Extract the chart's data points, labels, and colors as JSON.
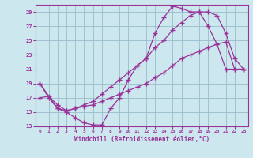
{
  "xlabel": "Windchill (Refroidissement éolien,°C)",
  "xlim": [
    -0.5,
    23.5
  ],
  "ylim": [
    13,
    30
  ],
  "xticks": [
    0,
    1,
    2,
    3,
    4,
    5,
    6,
    7,
    8,
    9,
    10,
    11,
    12,
    13,
    14,
    15,
    16,
    17,
    18,
    19,
    20,
    21,
    22,
    23
  ],
  "yticks": [
    13,
    15,
    17,
    19,
    21,
    23,
    25,
    27,
    29
  ],
  "bg_color": "#cce8ee",
  "line_color": "#993399",
  "grid_color": "#99bbcc",
  "line1_x": [
    0,
    1,
    2,
    3,
    4,
    5,
    6,
    7,
    8,
    9,
    10,
    11,
    12,
    13,
    14,
    15,
    16,
    17,
    18,
    19,
    20,
    21,
    22,
    23
  ],
  "line1_y": [
    19,
    17,
    15.5,
    15,
    14.2,
    13.5,
    13.2,
    13.2,
    15.5,
    17,
    19.5,
    21.5,
    22.5,
    26,
    28.2,
    29.8,
    29.5,
    29,
    29,
    27,
    24.5,
    21,
    21,
    21
  ],
  "line2_x": [
    0,
    2,
    3,
    4,
    5,
    6,
    7,
    8,
    9,
    10,
    11,
    12,
    13,
    14,
    15,
    16,
    17,
    18,
    19,
    20,
    21,
    22,
    23
  ],
  "line2_y": [
    19,
    15.5,
    15.2,
    15.5,
    16,
    16.5,
    17.5,
    18.5,
    19.5,
    20.5,
    21.5,
    22.5,
    24,
    25,
    26.5,
    27.5,
    28.5,
    29,
    29,
    28.5,
    26,
    22.5,
    21
  ],
  "line3_x": [
    0,
    1,
    2,
    3,
    4,
    5,
    6,
    7,
    8,
    9,
    10,
    11,
    12,
    13,
    14,
    15,
    16,
    17,
    18,
    19,
    20,
    21,
    22,
    23
  ],
  "line3_y": [
    17,
    17.2,
    16,
    15.2,
    15.5,
    15.8,
    16,
    16.5,
    17,
    17.5,
    18,
    18.5,
    19,
    19.8,
    20.5,
    21.5,
    22.5,
    23,
    23.5,
    24,
    24.5,
    24.8,
    21,
    21
  ]
}
